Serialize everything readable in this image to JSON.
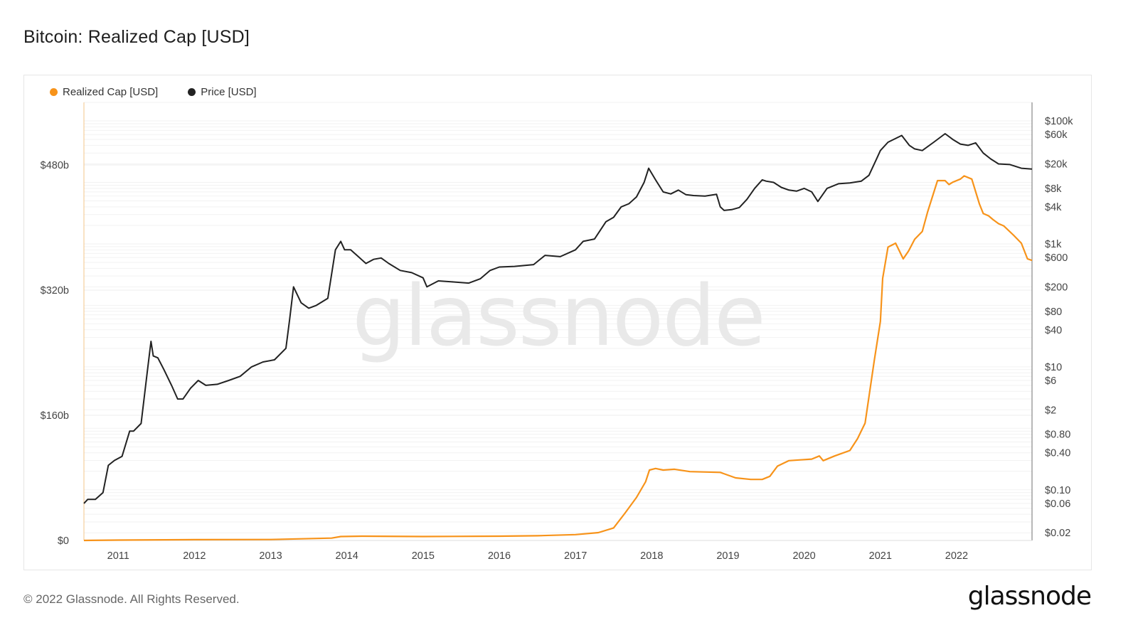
{
  "header": {
    "title": "Bitcoin: Realized Cap [USD]"
  },
  "watermark": "glassnode",
  "footer": {
    "copyright": "© 2022 Glassnode. All Rights Reserved.",
    "logo_text": "glassnode"
  },
  "colors": {
    "realized_cap": "#f7931a",
    "price": "#222222",
    "grid": "#ececec",
    "watermark": "#e9e9e9"
  },
  "chart_data": {
    "type": "line",
    "title": "Bitcoin: Realized Cap [USD]",
    "x_range": [
      2010.55,
      2022.99
    ],
    "grid": true,
    "legend_placement": "top-left",
    "left_axis": {
      "scale": "linear",
      "range": [
        0,
        560000000000
      ],
      "ticks": [
        {
          "value": 0,
          "label": "$0"
        },
        {
          "value": 160000000000,
          "label": "$160b"
        },
        {
          "value": 320000000000,
          "label": "$320b"
        },
        {
          "value": 480000000000,
          "label": "$480b"
        }
      ]
    },
    "right_axis": {
      "scale": "log",
      "range": [
        0.015,
        200000
      ],
      "ticks": [
        {
          "value": 100000,
          "label": "$100k"
        },
        {
          "value": 60000,
          "label": "$60k"
        },
        {
          "value": 20000,
          "label": "$20k"
        },
        {
          "value": 8000,
          "label": "$8k"
        },
        {
          "value": 4000,
          "label": "$4k"
        },
        {
          "value": 1000,
          "label": "$1k"
        },
        {
          "value": 600,
          "label": "$600"
        },
        {
          "value": 200,
          "label": "$200"
        },
        {
          "value": 80,
          "label": "$80"
        },
        {
          "value": 40,
          "label": "$40"
        },
        {
          "value": 10,
          "label": "$10"
        },
        {
          "value": 6,
          "label": "$6"
        },
        {
          "value": 2,
          "label": "$2"
        },
        {
          "value": 0.8,
          "label": "$0.80"
        },
        {
          "value": 0.4,
          "label": "$0.40"
        },
        {
          "value": 0.1,
          "label": "$0.10"
        },
        {
          "value": 0.06,
          "label": "$0.06"
        },
        {
          "value": 0.02,
          "label": "$0.02"
        }
      ]
    },
    "x_ticks": [
      {
        "value": 2011,
        "label": "2011"
      },
      {
        "value": 2012,
        "label": "2012"
      },
      {
        "value": 2013,
        "label": "2013"
      },
      {
        "value": 2014,
        "label": "2014"
      },
      {
        "value": 2015,
        "label": "2015"
      },
      {
        "value": 2016,
        "label": "2016"
      },
      {
        "value": 2017,
        "label": "2017"
      },
      {
        "value": 2018,
        "label": "2018"
      },
      {
        "value": 2019,
        "label": "2019"
      },
      {
        "value": 2020,
        "label": "2020"
      },
      {
        "value": 2021,
        "label": "2021"
      },
      {
        "value": 2022,
        "label": "2022"
      }
    ],
    "series": [
      {
        "name": "Realized Cap [USD]",
        "axis": "left",
        "x": [
          2010.55,
          2011.0,
          2012.0,
          2013.0,
          2013.8,
          2013.92,
          2014.2,
          2015.0,
          2016.0,
          2016.5,
          2017.0,
          2017.3,
          2017.5,
          2017.65,
          2017.8,
          2017.92,
          2017.97,
          2018.05,
          2018.15,
          2018.3,
          2018.5,
          2018.9,
          2019.1,
          2019.3,
          2019.45,
          2019.55,
          2019.65,
          2019.8,
          2019.95,
          2020.1,
          2020.2,
          2020.25,
          2020.4,
          2020.6,
          2020.7,
          2020.8,
          2020.92,
          2021.0,
          2021.03,
          2021.1,
          2021.2,
          2021.3,
          2021.37,
          2021.45,
          2021.55,
          2021.62,
          2021.75,
          2021.85,
          2021.9,
          2021.95,
          2022.05,
          2022.1,
          2022.2,
          2022.3,
          2022.35,
          2022.42,
          2022.48,
          2022.55,
          2022.62,
          2022.75,
          2022.85,
          2022.93,
          2022.99
        ],
        "values": [
          0,
          500000000,
          1000000000,
          1200000000,
          3000000000,
          5000000000,
          5500000000,
          5000000000,
          5500000000,
          6000000000,
          7500000000,
          10000000000,
          16000000000,
          35000000000,
          55000000000,
          75000000000,
          90000000000,
          92000000000,
          90000000000,
          91000000000,
          88000000000,
          87000000000,
          80000000000,
          78000000000,
          78000000000,
          82000000000,
          95000000000,
          102000000000,
          103000000000,
          104000000000,
          108000000000,
          102000000000,
          108000000000,
          115000000000,
          130000000000,
          150000000000,
          230000000000,
          280000000000,
          335000000000,
          375000000000,
          380000000000,
          360000000000,
          370000000000,
          385000000000,
          395000000000,
          420000000000,
          460000000000,
          460000000000,
          455000000000,
          458000000000,
          462000000000,
          466000000000,
          462000000000,
          430000000000,
          418000000000,
          415000000000,
          410000000000,
          405000000000,
          402000000000,
          390000000000,
          380000000000,
          360000000000,
          358000000000
        ]
      },
      {
        "name": "Price [USD]",
        "axis": "right",
        "x": [
          2010.55,
          2010.6,
          2010.7,
          2010.8,
          2010.87,
          2010.95,
          2011.05,
          2011.15,
          2011.2,
          2011.3,
          2011.38,
          2011.43,
          2011.46,
          2011.52,
          2011.6,
          2011.7,
          2011.78,
          2011.85,
          2011.95,
          2012.05,
          2012.15,
          2012.3,
          2012.45,
          2012.6,
          2012.75,
          2012.9,
          2013.05,
          2013.2,
          2013.25,
          2013.3,
          2013.4,
          2013.5,
          2013.6,
          2013.75,
          2013.85,
          2013.92,
          2013.97,
          2014.05,
          2014.15,
          2014.25,
          2014.35,
          2014.45,
          2014.55,
          2014.7,
          2014.85,
          2015.0,
          2015.05,
          2015.2,
          2015.4,
          2015.6,
          2015.75,
          2015.88,
          2016.0,
          2016.2,
          2016.45,
          2016.6,
          2016.8,
          2017.0,
          2017.1,
          2017.25,
          2017.4,
          2017.5,
          2017.6,
          2017.7,
          2017.8,
          2017.9,
          2017.96,
          2018.05,
          2018.15,
          2018.25,
          2018.35,
          2018.45,
          2018.55,
          2018.7,
          2018.85,
          2018.9,
          2018.95,
          2019.05,
          2019.15,
          2019.25,
          2019.35,
          2019.45,
          2019.5,
          2019.6,
          2019.7,
          2019.8,
          2019.9,
          2020.0,
          2020.1,
          2020.18,
          2020.2,
          2020.3,
          2020.45,
          2020.6,
          2020.75,
          2020.85,
          2020.95,
          2021.0,
          2021.1,
          2021.28,
          2021.38,
          2021.45,
          2021.55,
          2021.7,
          2021.85,
          2021.95,
          2022.05,
          2022.15,
          2022.25,
          2022.35,
          2022.45,
          2022.55,
          2022.7,
          2022.85,
          2022.99
        ],
        "values": [
          0.06,
          0.07,
          0.07,
          0.09,
          0.25,
          0.3,
          0.35,
          0.9,
          0.9,
          1.2,
          8,
          26,
          15,
          14,
          9,
          5,
          3,
          3,
          4.5,
          6,
          5,
          5.2,
          6,
          7,
          10,
          12,
          13,
          20,
          60,
          200,
          110,
          90,
          100,
          130,
          800,
          1100,
          800,
          800,
          620,
          480,
          560,
          590,
          480,
          370,
          340,
          280,
          200,
          250,
          240,
          230,
          270,
          370,
          420,
          430,
          460,
          650,
          620,
          800,
          1100,
          1200,
          2300,
          2700,
          4000,
          4500,
          5800,
          10000,
          17000,
          11000,
          7000,
          6500,
          7500,
          6300,
          6100,
          6000,
          6400,
          4000,
          3500,
          3600,
          3900,
          5300,
          8000,
          11000,
          10500,
          10000,
          8300,
          7500,
          7200,
          8000,
          7000,
          4900,
          5300,
          8000,
          9500,
          9800,
          10500,
          13000,
          24000,
          33000,
          45000,
          58000,
          40000,
          35000,
          33000,
          45000,
          62000,
          50000,
          42000,
          40000,
          44000,
          30000,
          24000,
          20000,
          19500,
          17000,
          16500
        ]
      }
    ]
  }
}
